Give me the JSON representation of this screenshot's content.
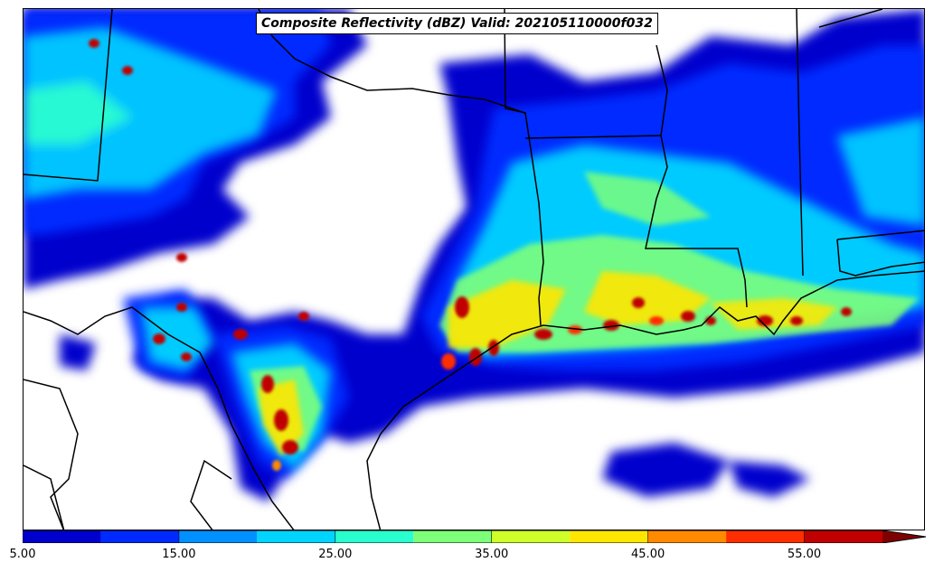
{
  "title": "Composite Reflectivity (dBZ) Valid: 202105110000f032",
  "colorbar": {
    "extend": "max",
    "bins": [
      {
        "from": 5,
        "to": 10,
        "color": "#0000cd"
      },
      {
        "from": 10,
        "to": 15,
        "color": "#0029ff"
      },
      {
        "from": 15,
        "to": 20,
        "color": "#0090ff"
      },
      {
        "from": 20,
        "to": 25,
        "color": "#00d4ff"
      },
      {
        "from": 25,
        "to": 30,
        "color": "#29ffce"
      },
      {
        "from": 30,
        "to": 35,
        "color": "#7dff7a"
      },
      {
        "from": 35,
        "to": 40,
        "color": "#ceff29"
      },
      {
        "from": 40,
        "to": 45,
        "color": "#ffe600"
      },
      {
        "from": 45,
        "to": 50,
        "color": "#ff8a00"
      },
      {
        "from": 50,
        "to": 55,
        "color": "#ff2e00"
      },
      {
        "from": 55,
        "to": 60,
        "color": "#c00000"
      }
    ],
    "overflow_color": "#800000",
    "tick_labels": [
      "5.00",
      "15.00",
      "25.00",
      "35.00",
      "45.00",
      "55.00"
    ],
    "tick_values": [
      5,
      15,
      25,
      35,
      45,
      55
    ]
  },
  "palette": {
    "background": "#ffffff",
    "borders": "#000000"
  }
}
